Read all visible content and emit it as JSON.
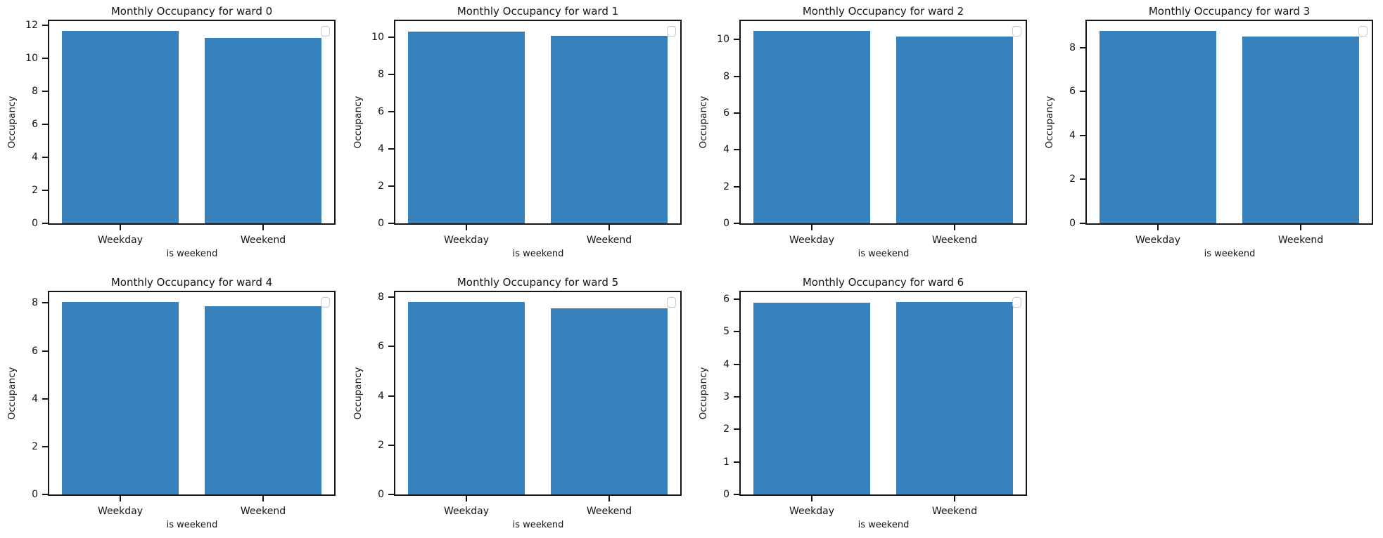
{
  "figure": {
    "kind": "matplotlib-multi-subplot-figure",
    "background": "#ffffff",
    "bar_color": "#3781bc",
    "axis_color": "#151515",
    "grid": "off",
    "rows": 2,
    "cols": 4,
    "empty_cells": 1
  },
  "chart_data": [
    {
      "type": "bar",
      "title": "Monthly Occupancy for ward 0",
      "categories": [
        "Weekday",
        "Weekend"
      ],
      "values": [
        11.65,
        11.25
      ],
      "xlabel": "is weekend",
      "ylabel": "Occupancy",
      "ylim": [
        0,
        12.25
      ],
      "yticks": [
        0,
        2,
        4,
        6,
        8,
        10,
        12
      ],
      "legend": {
        "position": "upper right",
        "entries": []
      }
    },
    {
      "type": "bar",
      "title": "Monthly Occupancy for ward 1",
      "categories": [
        "Weekday",
        "Weekend"
      ],
      "values": [
        10.3,
        10.05
      ],
      "xlabel": "is weekend",
      "ylabel": "Occupancy",
      "ylim": [
        0,
        10.85
      ],
      "yticks": [
        0,
        2,
        4,
        6,
        8,
        10
      ],
      "legend": {
        "position": "upper right",
        "entries": []
      }
    },
    {
      "type": "bar",
      "title": "Monthly Occupancy for ward 2",
      "categories": [
        "Weekday",
        "Weekend"
      ],
      "values": [
        10.45,
        10.15
      ],
      "xlabel": "is weekend",
      "ylabel": "Occupancy",
      "ylim": [
        0,
        11.0
      ],
      "yticks": [
        0,
        2,
        4,
        6,
        8,
        10
      ],
      "legend": {
        "position": "upper right",
        "entries": []
      }
    },
    {
      "type": "bar",
      "title": "Monthly Occupancy for ward 3",
      "categories": [
        "Weekday",
        "Weekend"
      ],
      "values": [
        8.75,
        8.5
      ],
      "xlabel": "is weekend",
      "ylabel": "Occupancy",
      "ylim": [
        0,
        9.2
      ],
      "yticks": [
        0,
        2,
        4,
        6,
        8
      ],
      "legend": {
        "position": "upper right",
        "entries": []
      }
    },
    {
      "type": "bar",
      "title": "Monthly Occupancy for ward 4",
      "categories": [
        "Weekday",
        "Weekend"
      ],
      "values": [
        8.05,
        7.85
      ],
      "xlabel": "is weekend",
      "ylabel": "Occupancy",
      "ylim": [
        0,
        8.45
      ],
      "yticks": [
        0,
        2,
        4,
        6,
        8
      ],
      "legend": {
        "position": "upper right",
        "entries": []
      }
    },
    {
      "type": "bar",
      "title": "Monthly Occupancy for ward 5",
      "categories": [
        "Weekday",
        "Weekend"
      ],
      "values": [
        7.8,
        7.55
      ],
      "xlabel": "is weekend",
      "ylabel": "Occupancy",
      "ylim": [
        0,
        8.2
      ],
      "yticks": [
        0,
        2,
        4,
        6,
        8
      ],
      "legend": {
        "position": "upper right",
        "entries": []
      }
    },
    {
      "type": "bar",
      "title": "Monthly Occupancy for ward 6",
      "categories": [
        "Weekday",
        "Weekend"
      ],
      "values": [
        5.9,
        5.92
      ],
      "xlabel": "is weekend",
      "ylabel": "Occupancy",
      "ylim": [
        0,
        6.22
      ],
      "yticks": [
        0,
        1,
        2,
        3,
        4,
        5,
        6
      ],
      "legend": {
        "position": "upper right",
        "entries": []
      }
    }
  ]
}
